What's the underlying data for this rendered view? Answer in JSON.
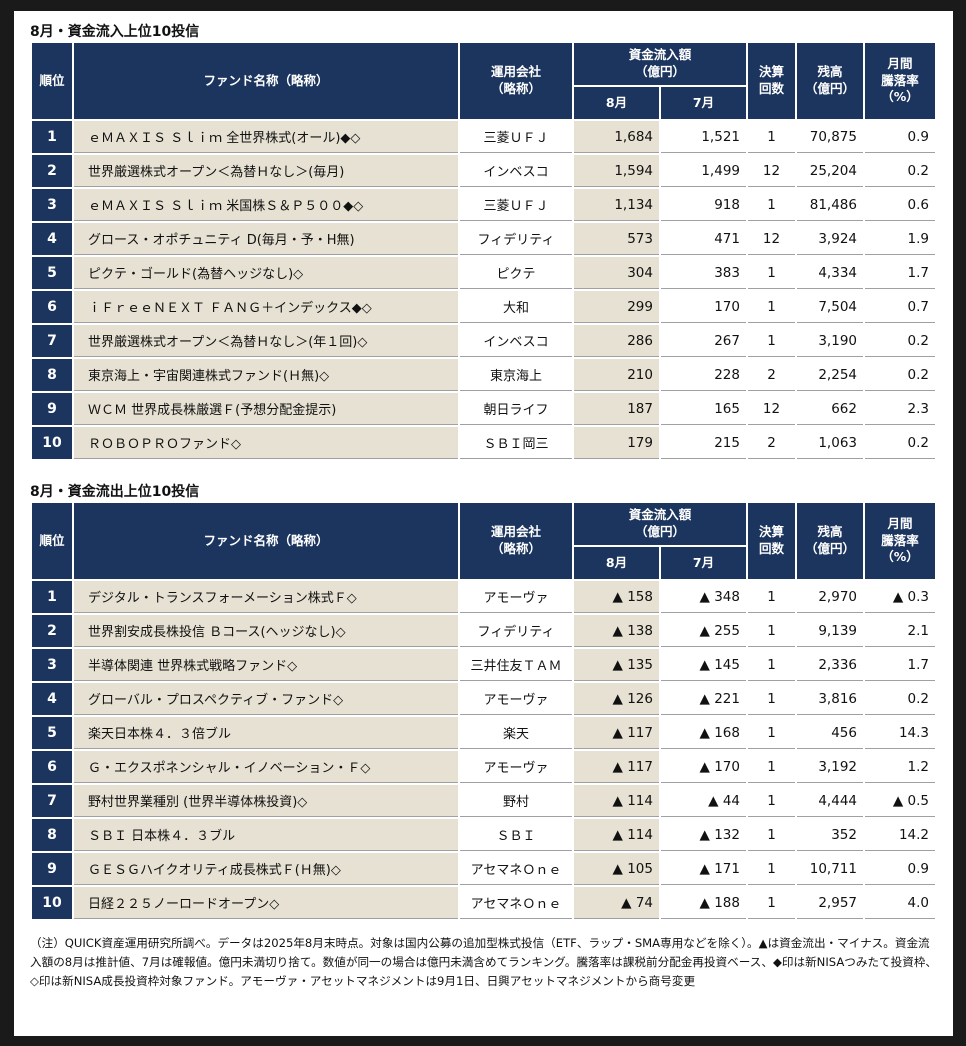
{
  "headers": {
    "rank": "順位",
    "fund": "ファンド名称（略称）",
    "company": "運用会社\n（略称）",
    "flow": "資金流入額\n（億円）",
    "aug": "8月",
    "jul": "7月",
    "settle": "決算\n回数",
    "balance": "残高\n（億円）",
    "drop": "月間\n騰落率\n（%）"
  },
  "inflow": {
    "title": "8月・資金流入上位10投信",
    "rows": [
      {
        "rank": "1",
        "fund": "ｅＭＡＸＩＳ Ｓｌｉｍ 全世界株式(オール)◆◇",
        "company": "三菱ＵＦＪ",
        "aug": "1,684",
        "jul": "1,521",
        "settle": "1",
        "balance": "70,875",
        "drop": "0.9"
      },
      {
        "rank": "2",
        "fund": "世界厳選株式オープン＜為替Ｈなし＞(毎月)",
        "company": "インベスコ",
        "aug": "1,594",
        "jul": "1,499",
        "settle": "12",
        "balance": "25,204",
        "drop": "0.2"
      },
      {
        "rank": "3",
        "fund": "ｅＭＡＸＩＳ Ｓｌｉｍ 米国株Ｓ＆Ｐ５００◆◇",
        "company": "三菱ＵＦＪ",
        "aug": "1,134",
        "jul": "918",
        "settle": "1",
        "balance": "81,486",
        "drop": "0.6"
      },
      {
        "rank": "4",
        "fund": "グロース・オポチュニティ D(毎月・予・H無)",
        "company": "フィデリティ",
        "aug": "573",
        "jul": "471",
        "settle": "12",
        "balance": "3,924",
        "drop": "1.9"
      },
      {
        "rank": "5",
        "fund": "ピクテ・ゴールド(為替ヘッジなし)◇",
        "company": "ピクテ",
        "aug": "304",
        "jul": "383",
        "settle": "1",
        "balance": "4,334",
        "drop": "1.7"
      },
      {
        "rank": "6",
        "fund": "ｉＦｒｅｅＮＥＸＴ ＦＡＮＧ＋インデックス◆◇",
        "company": "大和",
        "aug": "299",
        "jul": "170",
        "settle": "1",
        "balance": "7,504",
        "drop": "0.7"
      },
      {
        "rank": "7",
        "fund": "世界厳選株式オープン＜為替Ｈなし＞(年１回)◇",
        "company": "インベスコ",
        "aug": "286",
        "jul": "267",
        "settle": "1",
        "balance": "3,190",
        "drop": "0.2"
      },
      {
        "rank": "8",
        "fund": "東京海上・宇宙関連株式ファンド(Ｈ無)◇",
        "company": "東京海上",
        "aug": "210",
        "jul": "228",
        "settle": "2",
        "balance": "2,254",
        "drop": "0.2"
      },
      {
        "rank": "9",
        "fund": "ＷＣＭ 世界成長株厳選Ｆ(予想分配金提示)",
        "company": "朝日ライフ",
        "aug": "187",
        "jul": "165",
        "settle": "12",
        "balance": "662",
        "drop": "2.3"
      },
      {
        "rank": "10",
        "fund": "ＲＯＢＯＰＲＯファンド◇",
        "company": "ＳＢＩ岡三",
        "aug": "179",
        "jul": "215",
        "settle": "2",
        "balance": "1,063",
        "drop": "0.2"
      }
    ]
  },
  "outflow": {
    "title": "8月・資金流出上位10投信",
    "rows": [
      {
        "rank": "1",
        "fund": "デジタル・トランスフォーメーション株式Ｆ◇",
        "company": "アモーヴァ",
        "aug": "▲ 158",
        "jul": "▲ 348",
        "settle": "1",
        "balance": "2,970",
        "drop": "▲ 0.3"
      },
      {
        "rank": "2",
        "fund": "世界割安成長株投信 Ｂコース(ヘッジなし)◇",
        "company": "フィデリティ",
        "aug": "▲ 138",
        "jul": "▲ 255",
        "settle": "1",
        "balance": "9,139",
        "drop": "2.1"
      },
      {
        "rank": "3",
        "fund": "半導体関連 世界株式戦略ファンド◇",
        "company": "三井住友ＴＡＭ",
        "aug": "▲ 135",
        "jul": "▲ 145",
        "settle": "1",
        "balance": "2,336",
        "drop": "1.7"
      },
      {
        "rank": "4",
        "fund": "グローバル・プロスペクティブ・ファンド◇",
        "company": "アモーヴァ",
        "aug": "▲ 126",
        "jul": "▲ 221",
        "settle": "1",
        "balance": "3,816",
        "drop": "0.2"
      },
      {
        "rank": "5",
        "fund": "楽天日本株４．３倍ブル",
        "company": "楽天",
        "aug": "▲ 117",
        "jul": "▲ 168",
        "settle": "1",
        "balance": "456",
        "drop": "14.3"
      },
      {
        "rank": "6",
        "fund": "Ｇ・エクスポネンシャル・イノベーション・Ｆ◇",
        "company": "アモーヴァ",
        "aug": "▲ 117",
        "jul": "▲ 170",
        "settle": "1",
        "balance": "3,192",
        "drop": "1.2"
      },
      {
        "rank": "7",
        "fund": "野村世界業種別 (世界半導体株投資)◇",
        "company": "野村",
        "aug": "▲ 114",
        "jul": "▲ 44",
        "settle": "1",
        "balance": "4,444",
        "drop": "▲ 0.5"
      },
      {
        "rank": "8",
        "fund": "ＳＢＩ 日本株４．３ブル",
        "company": "ＳＢＩ",
        "aug": "▲ 114",
        "jul": "▲ 132",
        "settle": "1",
        "balance": "352",
        "drop": "14.2"
      },
      {
        "rank": "9",
        "fund": "ＧＥＳＧハイクオリティ成長株式Ｆ(Ｈ無)◇",
        "company": "アセマネＯｎｅ",
        "aug": "▲ 105",
        "jul": "▲ 171",
        "settle": "1",
        "balance": "10,711",
        "drop": "0.9"
      },
      {
        "rank": "10",
        "fund": "日経２２５ノーロードオープン◇",
        "company": "アセマネＯｎｅ",
        "aug": "▲ 74",
        "jul": "▲ 188",
        "settle": "1",
        "balance": "2,957",
        "drop": "4.0"
      }
    ]
  },
  "note": "（注）QUICK資産運用研究所調べ。データは2025年8月末時点。対象は国内公募の追加型株式投信（ETF、ラップ・SMA専用などを除く）。▲は資金流出・マイナス。資金流入額の8月は推計値、7月は確報値。億円未満切り捨て。数値が同一の場合は億円未満含めてランキング。騰落率は課税前分配金再投資ベース、◆印は新NISAつみたて投資枠、◇印は新NISA成長投資枠対象ファンド。アモーヴァ・アセットマネジメントは9月1日、日興アセットマネジメントから商号変更"
}
